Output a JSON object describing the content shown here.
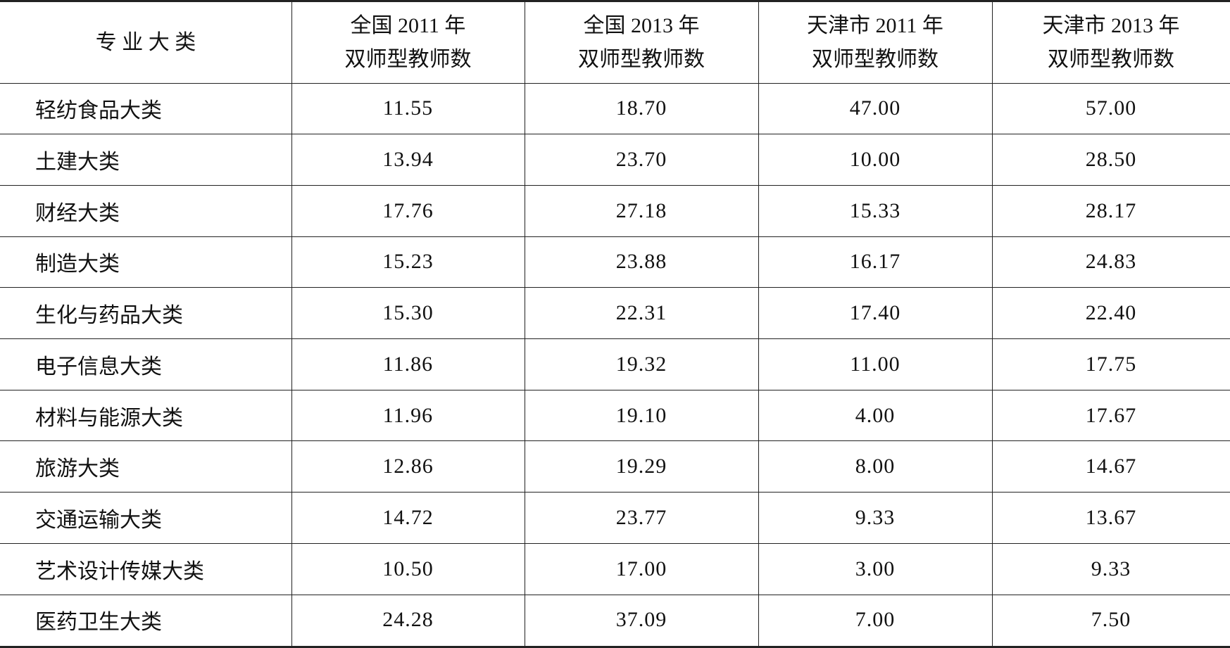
{
  "table": {
    "header": [
      [
        "专 业 大 类"
      ],
      [
        "全国 2011 年",
        "双师型教师数"
      ],
      [
        "全国 2013 年",
        "双师型教师数"
      ],
      [
        "天津市 2011 年",
        "双师型教师数"
      ],
      [
        "天津市 2013 年",
        "双师型教师数"
      ]
    ],
    "rows": [
      [
        "轻纺食品大类",
        "11.55",
        "18.70",
        "47.00",
        "57.00"
      ],
      [
        "土建大类",
        "13.94",
        "23.70",
        "10.00",
        "28.50"
      ],
      [
        "财经大类",
        "17.76",
        "27.18",
        "15.33",
        "28.17"
      ],
      [
        "制造大类",
        "15.23",
        "23.88",
        "16.17",
        "24.83"
      ],
      [
        "生化与药品大类",
        "15.30",
        "22.31",
        "17.40",
        "22.40"
      ],
      [
        "电子信息大类",
        "11.86",
        "19.32",
        "11.00",
        "17.75"
      ],
      [
        "材料与能源大类",
        "11.96",
        "19.10",
        "4.00",
        "17.67"
      ],
      [
        "旅游大类",
        "12.86",
        "19.29",
        "8.00",
        "14.67"
      ],
      [
        "交通运输大类",
        "14.72",
        "23.77",
        "9.33",
        "13.67"
      ],
      [
        "艺术设计传媒大类",
        "10.50",
        "17.00",
        "3.00",
        "9.33"
      ],
      [
        "医药卫生大类",
        "24.28",
        "37.09",
        "7.00",
        "7.50"
      ]
    ]
  }
}
